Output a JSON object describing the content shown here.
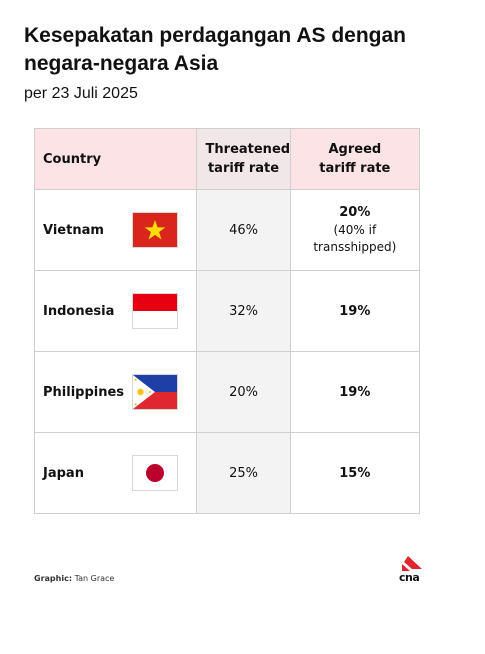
{
  "header": {
    "title": "Kesepakatan perdagangan AS dengan negara-negara Asia",
    "subtitle": "per 23 Juli 2025"
  },
  "table": {
    "columns": [
      "Country",
      "Threatened tariff rate",
      "Agreed tariff rate"
    ],
    "rows": [
      {
        "country": "Vietnam",
        "flag": "vietnam-flag",
        "threatened": "46%",
        "agreed": "20%",
        "agreed_note": "(40% if transshipped)"
      },
      {
        "country": "Indonesia",
        "flag": "indonesia-flag",
        "threatened": "32%",
        "agreed": "19%",
        "agreed_note": ""
      },
      {
        "country": "Philippines",
        "flag": "philippines-flag",
        "threatened": "20%",
        "agreed": "19%",
        "agreed_note": ""
      },
      {
        "country": "Japan",
        "flag": "japan-flag",
        "threatened": "25%",
        "agreed": "15%",
        "agreed_note": ""
      }
    ]
  },
  "footer": {
    "credit_label": "Graphic:",
    "credit_name": "Tan Grace",
    "logo_text": "cna"
  },
  "colors": {
    "header_bg": "#fbe3e6",
    "threatened_bg": "#f3f3f3",
    "logo_red": "#e0262f"
  }
}
